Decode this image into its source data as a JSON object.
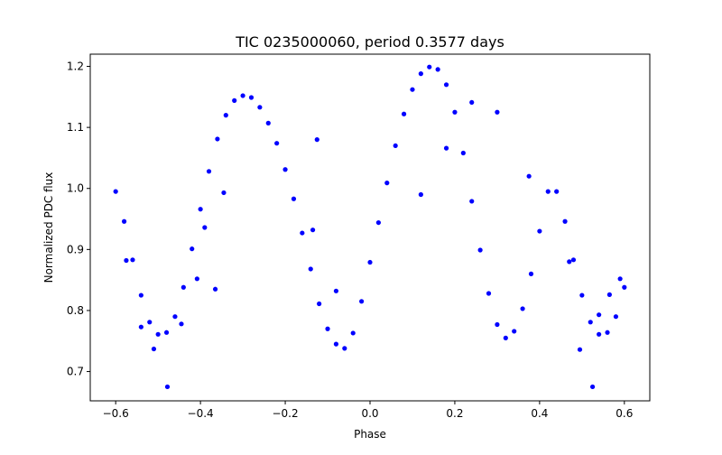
{
  "chart_data": {
    "type": "scatter",
    "title": "TIC 0235000060, period 0.3577 days",
    "xlabel": "Phase",
    "ylabel": "Normalized PDC flux",
    "xlim": [
      -0.66,
      0.66
    ],
    "ylim": [
      0.652,
      1.22
    ],
    "x_ticks": [
      -0.6,
      -0.4,
      -0.2,
      0.0,
      0.2,
      0.4,
      0.6
    ],
    "x_tick_labels": [
      "−0.6",
      "−0.4",
      "−0.2",
      "0.0",
      "0.2",
      "0.4",
      "0.6"
    ],
    "y_ticks": [
      0.7,
      0.8,
      0.9,
      1.0,
      1.1,
      1.2
    ],
    "y_tick_labels": [
      "0.7",
      "0.8",
      "0.9",
      "1.0",
      "1.1",
      "1.2"
    ],
    "grid": false,
    "legend": "none",
    "marker_color": "#0000ff",
    "series": [
      {
        "x": [
          -0.6,
          -0.58,
          -0.56,
          -0.54,
          -0.52,
          -0.5,
          -0.48,
          -0.46,
          -0.44,
          -0.42,
          -0.4,
          -0.38,
          -0.36,
          -0.34,
          -0.32,
          -0.3,
          -0.28,
          -0.26,
          -0.24,
          -0.22,
          -0.2,
          -0.18,
          -0.16,
          -0.14,
          -0.12,
          -0.1,
          -0.08,
          -0.06,
          -0.04,
          -0.02,
          0.0,
          0.02,
          0.04,
          0.06,
          0.08,
          0.1,
          0.12,
          0.14,
          0.16,
          0.18,
          0.2,
          0.22,
          0.24,
          0.26,
          0.28,
          0.3,
          0.32,
          0.34,
          0.36,
          0.38,
          0.4,
          0.42,
          0.44,
          0.46,
          0.48,
          0.5,
          0.52,
          0.54,
          0.56,
          0.58,
          0.6
        ],
        "y": [
          0.995,
          0.946,
          0.883,
          0.825,
          0.781,
          0.761,
          0.764,
          0.79,
          0.838,
          0.901,
          0.966,
          1.028,
          1.081,
          1.12,
          1.144,
          1.152,
          1.149,
          1.133,
          1.107,
          1.074,
          1.031,
          0.983,
          0.927,
          0.868,
          0.811,
          0.77,
          0.745,
          0.738,
          0.763,
          0.815,
          0.879,
          0.944,
          1.009,
          1.07,
          1.122,
          1.162,
          1.188,
          1.199,
          1.195,
          1.17,
          1.125,
          1.058,
          0.979,
          0.899,
          0.828,
          0.777,
          0.755,
          0.766,
          0.803,
          0.86,
          0.93,
          0.995,
          0.995,
          0.946,
          0.883,
          0.825,
          0.781,
          0.761,
          0.764,
          0.79,
          0.838
        ]
      },
      {
        "x": [
          -0.575,
          -0.54,
          -0.51,
          -0.478,
          -0.445,
          -0.408,
          -0.39,
          -0.365,
          -0.345,
          -0.135,
          -0.125,
          -0.08,
          0.12,
          0.18,
          0.24,
          0.3,
          0.375,
          0.47,
          0.495,
          0.525,
          0.54,
          0.565,
          0.59
        ],
        "y": [
          0.882,
          0.773,
          0.737,
          0.675,
          0.778,
          0.852,
          0.936,
          0.835,
          0.993,
          0.932,
          1.08,
          0.832,
          0.99,
          1.066,
          1.141,
          1.125,
          1.02,
          0.88,
          0.736,
          0.675,
          0.793,
          0.826,
          0.852
        ]
      }
    ]
  }
}
